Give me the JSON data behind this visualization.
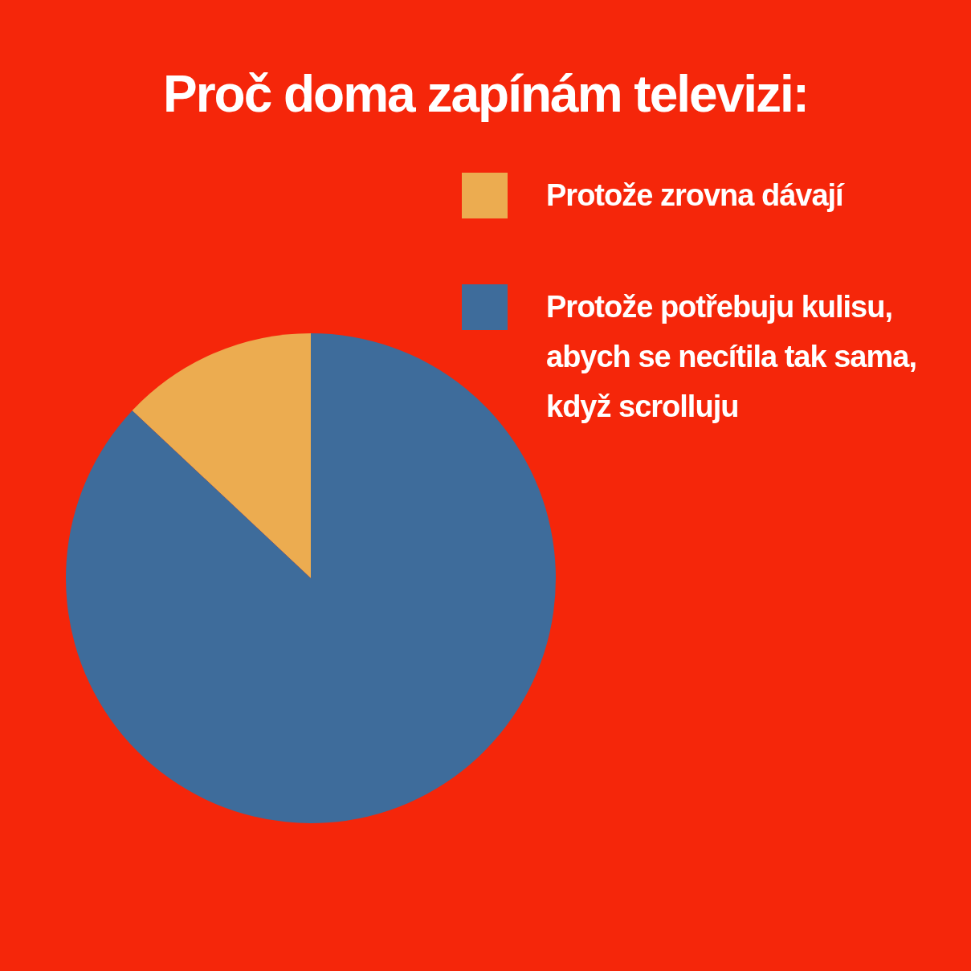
{
  "chart_data": {
    "type": "pie",
    "title": "Proč doma zapínám televizi:",
    "categories": [
      "Protože zrovna dávají",
      "Protože potřebuju kulisu, abych se necítila tak sama, když scrolluju"
    ],
    "values": [
      13,
      87
    ],
    "colors": [
      "#ecac50",
      "#3e6c9b"
    ],
    "legend": "right"
  }
}
